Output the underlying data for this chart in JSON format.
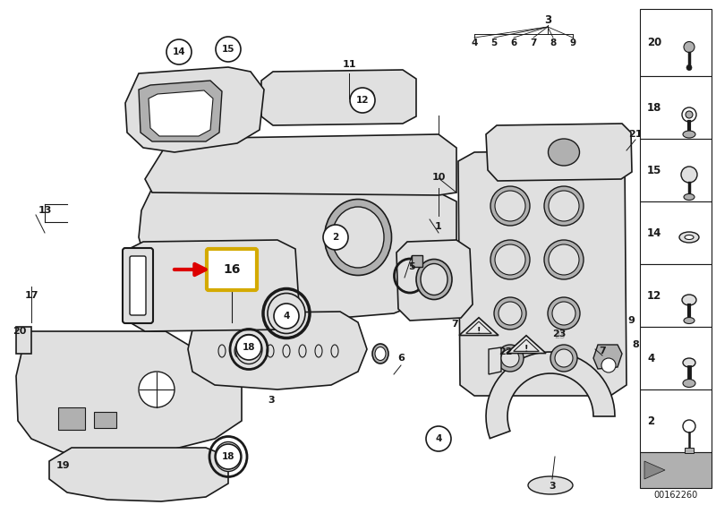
{
  "bg_color": "#ffffff",
  "line_color": "#1a1a1a",
  "fig_width": 8.0,
  "fig_height": 5.64,
  "dpi": 100,
  "highlight_box_color": "#d4aa00",
  "red_arrow_color": "#dd0000",
  "watermark": "00162260",
  "panel_bg": "#ffffff",
  "gray_fill": "#c8c8c8",
  "light_gray": "#e0e0e0",
  "dark_gray": "#888888",
  "medium_gray": "#b0b0b0"
}
